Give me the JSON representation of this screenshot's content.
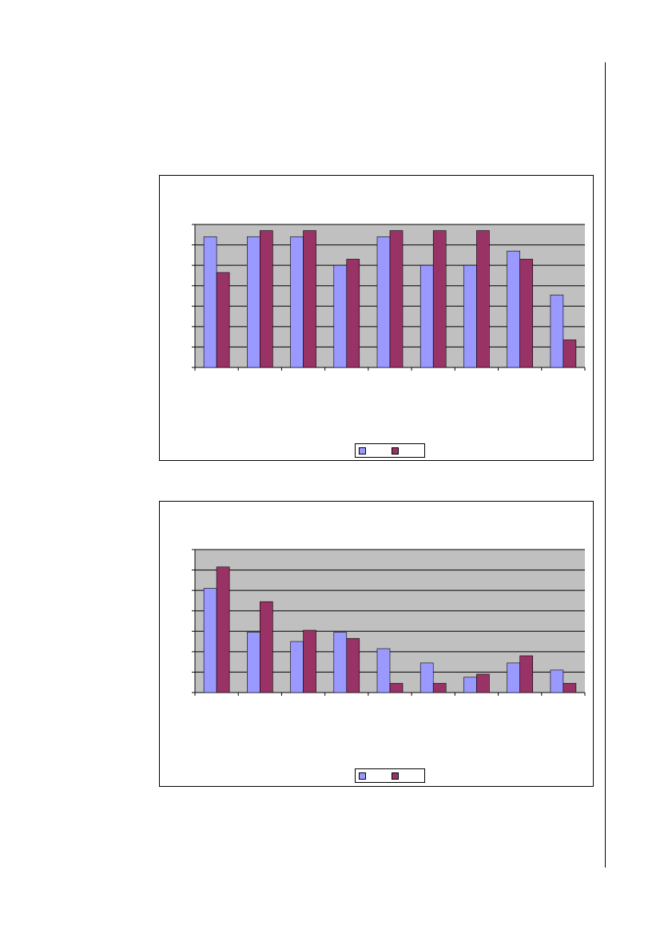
{
  "colors": {
    "plot_background": "#c0c0c0",
    "series_1": "#9999ff",
    "series_2": "#993366",
    "gridline": "#000000"
  },
  "chart_data": [
    {
      "type": "bar",
      "categories": [
        "",
        "",
        "",
        "",
        "",
        "",
        "",
        "",
        ""
      ],
      "series": [
        {
          "values": [
            6.4,
            6.4,
            6.4,
            5.0,
            6.4,
            5.0,
            5.0,
            5.7,
            3.55
          ]
        },
        {
          "values": [
            4.65,
            6.7,
            6.7,
            5.3,
            6.7,
            6.7,
            6.7,
            5.3,
            1.35
          ]
        }
      ],
      "ylim": [
        0,
        7
      ],
      "grid": true,
      "legend": "bottom-center",
      "title": "",
      "xlabel": "",
      "ylabel": ""
    },
    {
      "type": "bar",
      "categories": [
        "",
        "",
        "",
        "",
        "",
        "",
        "",
        "",
        ""
      ],
      "series": [
        {
          "values": [
            5.1,
            2.95,
            2.5,
            2.95,
            2.15,
            1.45,
            0.75,
            1.45,
            1.1
          ]
        },
        {
          "values": [
            6.15,
            4.45,
            3.05,
            2.65,
            0.45,
            0.45,
            0.9,
            1.8,
            0.45
          ]
        }
      ],
      "ylim": [
        0,
        7
      ],
      "grid": true,
      "legend": "bottom-center",
      "title": "",
      "xlabel": "",
      "ylabel": ""
    }
  ]
}
